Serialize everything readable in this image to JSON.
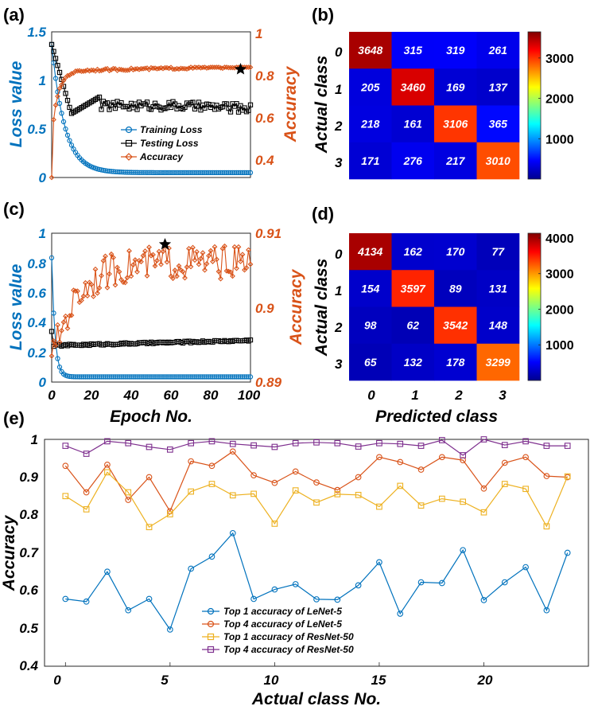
{
  "chart_data": [
    {
      "panel": "(a)",
      "type": "line",
      "xlabel": "",
      "ylabel_left": "Loss value",
      "ylabel_right": "Accuracy",
      "xlim": [
        0,
        100
      ],
      "ylim_left": [
        0,
        1.5
      ],
      "ylim_right": [
        0.3,
        1.0
      ],
      "xticks": [],
      "yticks_left": [
        "0",
        "0.5",
        "1",
        "1.5"
      ],
      "yticks_right": [
        "0.4",
        "0.6",
        "0.8",
        "1"
      ],
      "legend": [
        "Training Loss",
        "Testing Loss",
        "Accuracy"
      ],
      "legend_position": "center-right",
      "best_epoch": 95,
      "best_accuracy": 0.82,
      "series": [
        {
          "name": "Training Loss",
          "axis": "left",
          "color": "#0072BD",
          "marker": "circle",
          "model": "train"
        },
        {
          "name": "Testing Loss",
          "axis": "left",
          "color": "#000000",
          "marker": "square",
          "model": "testA"
        },
        {
          "name": "Accuracy",
          "axis": "right",
          "color": "#D95319",
          "marker": "diamond",
          "model": "accA"
        }
      ]
    },
    {
      "panel": "(b)",
      "type": "heatmap",
      "ylabel": "Actual class",
      "xlabel": "",
      "row_labels": [
        "0",
        "1",
        "2",
        "3"
      ],
      "col_labels": [],
      "matrix": [
        [
          3648,
          315,
          319,
          261
        ],
        [
          205,
          3460,
          169,
          137
        ],
        [
          218,
          161,
          3106,
          365
        ],
        [
          171,
          276,
          217,
          3010
        ]
      ],
      "colorbar": {
        "min": 0,
        "max": 3648,
        "ticks": [
          "1000",
          "2000",
          "3000"
        ],
        "tick_values": [
          1000,
          2000,
          3000
        ]
      }
    },
    {
      "panel": "(c)",
      "type": "line",
      "xlabel": "Epoch No.",
      "ylabel_left": "Loss value",
      "ylabel_right": "Accuracy",
      "xlim": [
        0,
        100
      ],
      "ylim_left": [
        0,
        1.0
      ],
      "ylim_right": [
        0.89,
        0.91
      ],
      "xticks": [
        "0",
        "20",
        "40",
        "60",
        "80",
        "100"
      ],
      "yticks_left": [
        "0",
        "0.2",
        "0.4",
        "0.6",
        "0.8",
        "1"
      ],
      "yticks_right": [
        "0.89",
        "0.9",
        "0.91"
      ],
      "best_epoch": 57,
      "best_accuracy": 0.9085,
      "series": [
        {
          "name": "Training Loss",
          "axis": "left",
          "color": "#0072BD",
          "marker": "circle",
          "model": "trainC"
        },
        {
          "name": "Testing Loss",
          "axis": "left",
          "color": "#000000",
          "marker": "square",
          "model": "testC"
        },
        {
          "name": "Accuracy",
          "axis": "right",
          "color": "#D95319",
          "marker": "diamond",
          "model": "accC"
        }
      ]
    },
    {
      "panel": "(d)",
      "type": "heatmap",
      "ylabel": "Actual class",
      "xlabel": "Predicted class",
      "row_labels": [
        "0",
        "1",
        "2",
        "3"
      ],
      "col_labels": [
        "0",
        "1",
        "2",
        "3"
      ],
      "matrix": [
        [
          4134,
          162,
          170,
          77
        ],
        [
          154,
          3597,
          89,
          131
        ],
        [
          98,
          62,
          3542,
          148
        ],
        [
          65,
          132,
          178,
          3299
        ]
      ],
      "colorbar": {
        "min": 0,
        "max": 4134,
        "ticks": [
          "1000",
          "2000",
          "3000",
          "4000"
        ],
        "tick_values": [
          1000,
          2000,
          3000,
          4000
        ]
      }
    },
    {
      "panel": "(e)",
      "type": "line",
      "xlabel": "Actual class No.",
      "ylabel": "Accuracy",
      "xlim": [
        -1,
        25
      ],
      "ylim": [
        0.4,
        1.0
      ],
      "xticks": [
        "0",
        "5",
        "10",
        "15",
        "20"
      ],
      "xtick_values": [
        0,
        5,
        10,
        15,
        20
      ],
      "yticks": [
        "0.4",
        "0.5",
        "0.6",
        "0.7",
        "0.8",
        "0.9",
        "1"
      ],
      "legend_position": "bottom-center",
      "x": [
        0,
        1,
        2,
        3,
        4,
        5,
        6,
        7,
        8,
        9,
        10,
        11,
        12,
        13,
        14,
        15,
        16,
        17,
        18,
        19,
        20,
        21,
        22,
        23,
        24
      ],
      "series": [
        {
          "name": "Top 1 accuracy of LeNet-5",
          "color": "#0072BD",
          "marker": "circle",
          "values": [
            0.578,
            0.571,
            0.65,
            0.548,
            0.578,
            0.497,
            0.658,
            0.69,
            0.752,
            0.578,
            0.603,
            0.617,
            0.577,
            0.576,
            0.614,
            0.675,
            0.539,
            0.622,
            0.62,
            0.707,
            0.575,
            0.622,
            0.662,
            0.548,
            0.7
          ]
        },
        {
          "name": "Top 4 accuracy of LeNet-5",
          "color": "#D95319",
          "marker": "circle",
          "values": [
            0.93,
            0.86,
            0.933,
            0.84,
            0.9,
            0.81,
            0.942,
            0.93,
            0.968,
            0.905,
            0.885,
            0.915,
            0.886,
            0.866,
            0.9,
            0.953,
            0.94,
            0.92,
            0.953,
            0.945,
            0.87,
            0.938,
            0.953,
            0.903,
            0.9
          ]
        },
        {
          "name": "Top 1 accuracy of ResNet-50",
          "color": "#EDB120",
          "marker": "square",
          "values": [
            0.85,
            0.815,
            0.913,
            0.86,
            0.768,
            0.802,
            0.862,
            0.882,
            0.852,
            0.856,
            0.777,
            0.865,
            0.833,
            0.855,
            0.853,
            0.822,
            0.877,
            0.825,
            0.843,
            0.835,
            0.807,
            0.882,
            0.869,
            0.77,
            0.902
          ]
        },
        {
          "name": "Top 4 accuracy of ResNet-50",
          "color": "#7E2F8E",
          "marker": "square",
          "values": [
            0.983,
            0.962,
            0.995,
            0.99,
            0.98,
            0.973,
            0.99,
            0.995,
            0.988,
            0.984,
            0.98,
            0.99,
            0.992,
            0.99,
            0.981,
            0.99,
            0.988,
            0.983,
            0.998,
            0.958,
            1.0,
            0.985,
            0.995,
            0.983,
            0.983
          ]
        }
      ]
    }
  ]
}
